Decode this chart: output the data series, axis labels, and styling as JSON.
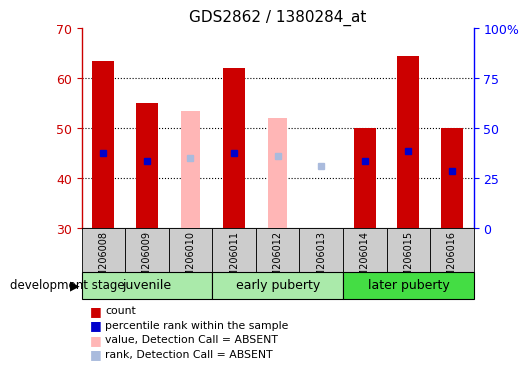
{
  "title": "GDS2862 / 1380284_at",
  "samples": [
    "GSM206008",
    "GSM206009",
    "GSM206010",
    "GSM206011",
    "GSM206012",
    "GSM206013",
    "GSM206014",
    "GSM206015",
    "GSM206016"
  ],
  "bar_bottom": 30,
  "ylim": [
    30,
    70
  ],
  "y2lim": [
    0,
    100
  ],
  "y_ticks": [
    30,
    40,
    50,
    60,
    70
  ],
  "y2_ticks": [
    0,
    25,
    50,
    75,
    100
  ],
  "count_values": [
    63.5,
    55.0,
    null,
    62.0,
    null,
    30.0,
    50.0,
    64.5,
    50.0
  ],
  "absent_value_values": [
    null,
    null,
    53.5,
    null,
    52.0,
    null,
    null,
    null,
    null
  ],
  "percentile_rank": [
    45.0,
    43.5,
    null,
    45.0,
    null,
    null,
    43.5,
    45.5,
    41.5
  ],
  "absent_rank_values": [
    null,
    null,
    44.0,
    null,
    44.5,
    42.5,
    null,
    null,
    null
  ],
  "bar_width": 0.5,
  "absent_bar_width": 0.45,
  "count_color": "#CC0000",
  "percentile_color": "#0000CC",
  "absent_value_color": "#FFB6B6",
  "absent_rank_color": "#AABBDD",
  "group_defs": [
    {
      "name": "juvenile",
      "start": 0,
      "end": 3,
      "color": "#AAEAAA"
    },
    {
      "name": "early puberty",
      "start": 3,
      "end": 6,
      "color": "#AAEAAA"
    },
    {
      "name": "later puberty",
      "start": 6,
      "end": 9,
      "color": "#44DD44"
    }
  ],
  "legend_items": [
    {
      "label": "count",
      "color": "#CC0000"
    },
    {
      "label": "percentile rank within the sample",
      "color": "#0000CC"
    },
    {
      "label": "value, Detection Call = ABSENT",
      "color": "#FFB6B6"
    },
    {
      "label": "rank, Detection Call = ABSENT",
      "color": "#AABBDD"
    }
  ]
}
